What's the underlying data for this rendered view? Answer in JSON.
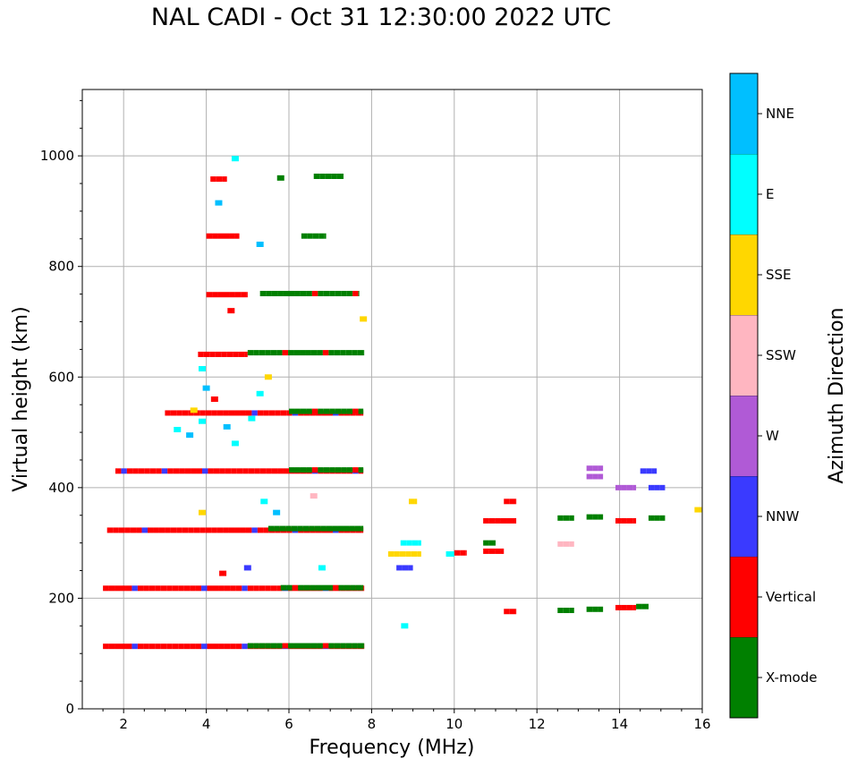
{
  "chart_data": {
    "type": "heatmap",
    "title": "NAL CADI - Oct 31 12:30:00 2022 UTC",
    "xlabel": "Frequency (MHz)",
    "ylabel": "Virtual height (km)",
    "xlim": [
      1,
      16
    ],
    "ylim": [
      0,
      1120
    ],
    "xticks": [
      2,
      4,
      6,
      8,
      10,
      12,
      14,
      16
    ],
    "yticks": [
      0,
      200,
      400,
      600,
      800,
      1000
    ],
    "grid": true,
    "colorbar": {
      "label": "Azimuth Direction",
      "categories": [
        "X-mode",
        "Vertical",
        "NNW",
        "W",
        "SSW",
        "SSE",
        "E",
        "NNE"
      ],
      "colors": [
        "#008000",
        "#ff0000",
        "#3a3aff",
        "#b05ad6",
        "#ffb6c1",
        "#ffd700",
        "#00ffff",
        "#00bfff"
      ]
    },
    "traces": [
      {
        "f0": 1.5,
        "f1": 7.8,
        "h": 113,
        "cat": "Vertical"
      },
      {
        "f0": 5.0,
        "f1": 7.8,
        "h": 114,
        "cat": "X-mode"
      },
      {
        "f0": 1.5,
        "f1": 7.8,
        "h": 218,
        "cat": "Vertical"
      },
      {
        "f0": 5.8,
        "f1": 7.8,
        "h": 219,
        "cat": "X-mode"
      },
      {
        "f0": 1.6,
        "f1": 7.8,
        "h": 323,
        "cat": "Vertical"
      },
      {
        "f0": 5.5,
        "f1": 7.8,
        "h": 326,
        "cat": "X-mode"
      },
      {
        "f0": 1.8,
        "f1": 7.8,
        "h": 430,
        "cat": "Vertical"
      },
      {
        "f0": 6.0,
        "f1": 7.8,
        "h": 432,
        "cat": "X-mode"
      },
      {
        "f0": 3.0,
        "f1": 7.8,
        "h": 535,
        "cat": "Vertical"
      },
      {
        "f0": 6.0,
        "f1": 7.8,
        "h": 538,
        "cat": "X-mode"
      },
      {
        "f0": 3.8,
        "f1": 5.0,
        "h": 641,
        "cat": "Vertical"
      },
      {
        "f0": 5.0,
        "f1": 7.8,
        "h": 644,
        "cat": "X-mode"
      },
      {
        "f0": 4.0,
        "f1": 5.0,
        "h": 749,
        "cat": "Vertical"
      },
      {
        "f0": 5.3,
        "f1": 7.7,
        "h": 751,
        "cat": "X-mode"
      },
      {
        "f0": 4.0,
        "f1": 4.8,
        "h": 855,
        "cat": "Vertical"
      },
      {
        "f0": 6.3,
        "f1": 6.9,
        "h": 855,
        "cat": "X-mode"
      },
      {
        "f0": 6.6,
        "f1": 7.3,
        "h": 963,
        "cat": "X-mode"
      },
      {
        "f0": 4.1,
        "f1": 4.5,
        "h": 958,
        "cat": "Vertical"
      },
      {
        "f0": 8.4,
        "f1": 9.2,
        "h": 280,
        "cat": "SSE"
      },
      {
        "f0": 8.6,
        "f1": 9.0,
        "h": 255,
        "cat": "NNW"
      },
      {
        "f0": 8.7,
        "f1": 9.2,
        "h": 300,
        "cat": "E"
      },
      {
        "f0": 8.9,
        "f1": 9.1,
        "h": 375,
        "cat": "SSE"
      },
      {
        "f0": 9.8,
        "f1": 10.0,
        "h": 280,
        "cat": "E"
      },
      {
        "f0": 10.0,
        "f1": 10.3,
        "h": 282,
        "cat": "Vertical"
      },
      {
        "f0": 10.7,
        "f1": 11.2,
        "h": 285,
        "cat": "Vertical"
      },
      {
        "f0": 10.7,
        "f1": 11.0,
        "h": 300,
        "cat": "X-mode"
      },
      {
        "f0": 10.7,
        "f1": 11.5,
        "h": 340,
        "cat": "Vertical"
      },
      {
        "f0": 11.2,
        "f1": 11.5,
        "h": 375,
        "cat": "Vertical"
      },
      {
        "f0": 11.2,
        "f1": 11.5,
        "h": 176,
        "cat": "Vertical"
      },
      {
        "f0": 12.5,
        "f1": 12.9,
        "h": 178,
        "cat": "X-mode"
      },
      {
        "f0": 12.5,
        "f1": 12.9,
        "h": 298,
        "cat": "SSW"
      },
      {
        "f0": 12.5,
        "f1": 12.9,
        "h": 345,
        "cat": "X-mode"
      },
      {
        "f0": 13.2,
        "f1": 13.6,
        "h": 180,
        "cat": "X-mode"
      },
      {
        "f0": 13.2,
        "f1": 13.6,
        "h": 347,
        "cat": "X-mode"
      },
      {
        "f0": 13.2,
        "f1": 13.6,
        "h": 420,
        "cat": "W"
      },
      {
        "f0": 13.2,
        "f1": 13.6,
        "h": 435,
        "cat": "W"
      },
      {
        "f0": 13.9,
        "f1": 14.4,
        "h": 183,
        "cat": "Vertical"
      },
      {
        "f0": 13.9,
        "f1": 14.4,
        "h": 340,
        "cat": "Vertical"
      },
      {
        "f0": 13.9,
        "f1": 14.4,
        "h": 400,
        "cat": "W"
      },
      {
        "f0": 14.4,
        "f1": 14.7,
        "h": 185,
        "cat": "X-mode"
      },
      {
        "f0": 14.5,
        "f1": 14.9,
        "h": 430,
        "cat": "NNW"
      },
      {
        "f0": 14.7,
        "f1": 15.1,
        "h": 345,
        "cat": "X-mode"
      },
      {
        "f0": 14.7,
        "f1": 15.1,
        "h": 400,
        "cat": "NNW"
      }
    ],
    "scatter_points": [
      {
        "f": 3.3,
        "h": 505,
        "cat": "E"
      },
      {
        "f": 3.6,
        "h": 495,
        "cat": "NNE"
      },
      {
        "f": 3.9,
        "h": 520,
        "cat": "E"
      },
      {
        "f": 4.2,
        "h": 560,
        "cat": "Vertical"
      },
      {
        "f": 4.5,
        "h": 510,
        "cat": "NNE"
      },
      {
        "f": 4.7,
        "h": 480,
        "cat": "E"
      },
      {
        "f": 5.1,
        "h": 525,
        "cat": "E"
      },
      {
        "f": 5.3,
        "h": 570,
        "cat": "E"
      },
      {
        "f": 5.5,
        "h": 600,
        "cat": "SSE"
      },
      {
        "f": 3.7,
        "h": 540,
        "cat": "SSE"
      },
      {
        "f": 3.9,
        "h": 615,
        "cat": "E"
      },
      {
        "f": 4.0,
        "h": 580,
        "cat": "NNE"
      },
      {
        "f": 5.4,
        "h": 375,
        "cat": "E"
      },
      {
        "f": 5.7,
        "h": 355,
        "cat": "NNE"
      },
      {
        "f": 6.6,
        "h": 385,
        "cat": "SSW"
      },
      {
        "f": 4.4,
        "h": 245,
        "cat": "Vertical"
      },
      {
        "f": 5.0,
        "h": 255,
        "cat": "NNW"
      },
      {
        "f": 6.8,
        "h": 255,
        "cat": "E"
      },
      {
        "f": 4.3,
        "h": 915,
        "cat": "NNE"
      },
      {
        "f": 4.7,
        "h": 995,
        "cat": "E"
      },
      {
        "f": 4.6,
        "h": 720,
        "cat": "Vertical"
      },
      {
        "f": 7.8,
        "h": 705,
        "cat": "SSE"
      },
      {
        "f": 8.8,
        "h": 150,
        "cat": "E"
      },
      {
        "f": 15.9,
        "h": 360,
        "cat": "SSE"
      },
      {
        "f": 5.8,
        "h": 960,
        "cat": "X-mode"
      },
      {
        "f": 3.9,
        "h": 355,
        "cat": "SSE"
      },
      {
        "f": 5.3,
        "h": 840,
        "cat": "NNE"
      }
    ]
  }
}
